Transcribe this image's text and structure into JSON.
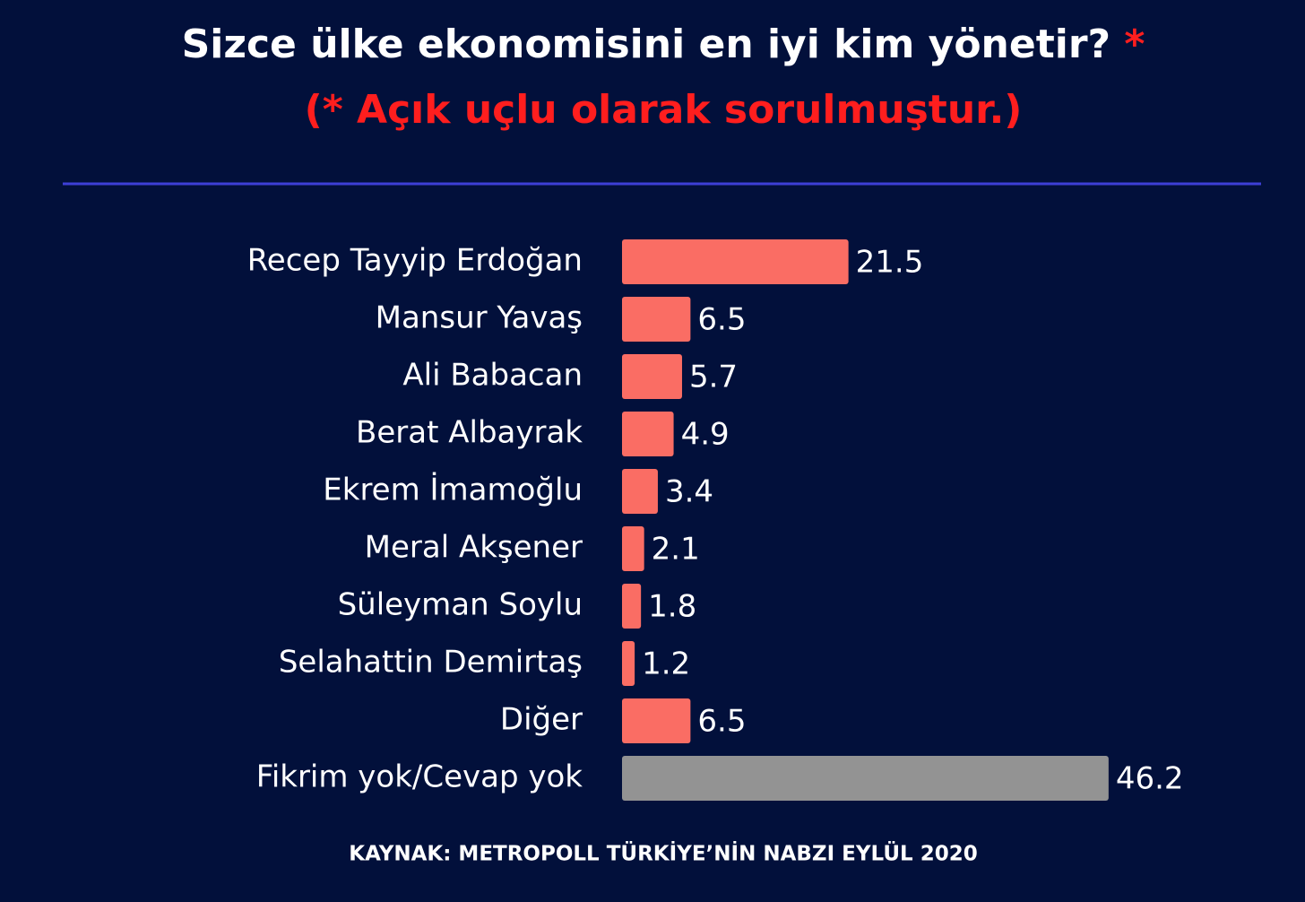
{
  "chart_data": {
    "type": "bar",
    "orientation": "horizontal",
    "title": "Sizce ülke ekonomisini en iyi kim yönetir?",
    "title_mark": "*",
    "subtitle": "(* Açık uçlu olarak sorulmuştur.)",
    "source": "KAYNAK: METROPOLL TÜRKİYE’NİN NABZI EYLÜL 2020",
    "categories": [
      "Recep Tayyip Erdoğan",
      "Mansur Yavaş",
      "Ali Babacan",
      "Berat Albayrak",
      "Ekrem İmamoğlu",
      "Meral Akşener",
      "Süleyman Soylu",
      "Selahattin Demirtaş",
      "Diğer",
      "Fikrim yok/Cevap yok"
    ],
    "values": [
      21.5,
      6.5,
      5.7,
      4.9,
      3.4,
      2.1,
      1.8,
      1.2,
      6.5,
      46.2
    ],
    "colors": [
      "#fa6d64",
      "#fa6d64",
      "#fa6d64",
      "#fa6d64",
      "#fa6d64",
      "#fa6d64",
      "#fa6d64",
      "#fa6d64",
      "#fa6d64",
      "#939393"
    ]
  }
}
